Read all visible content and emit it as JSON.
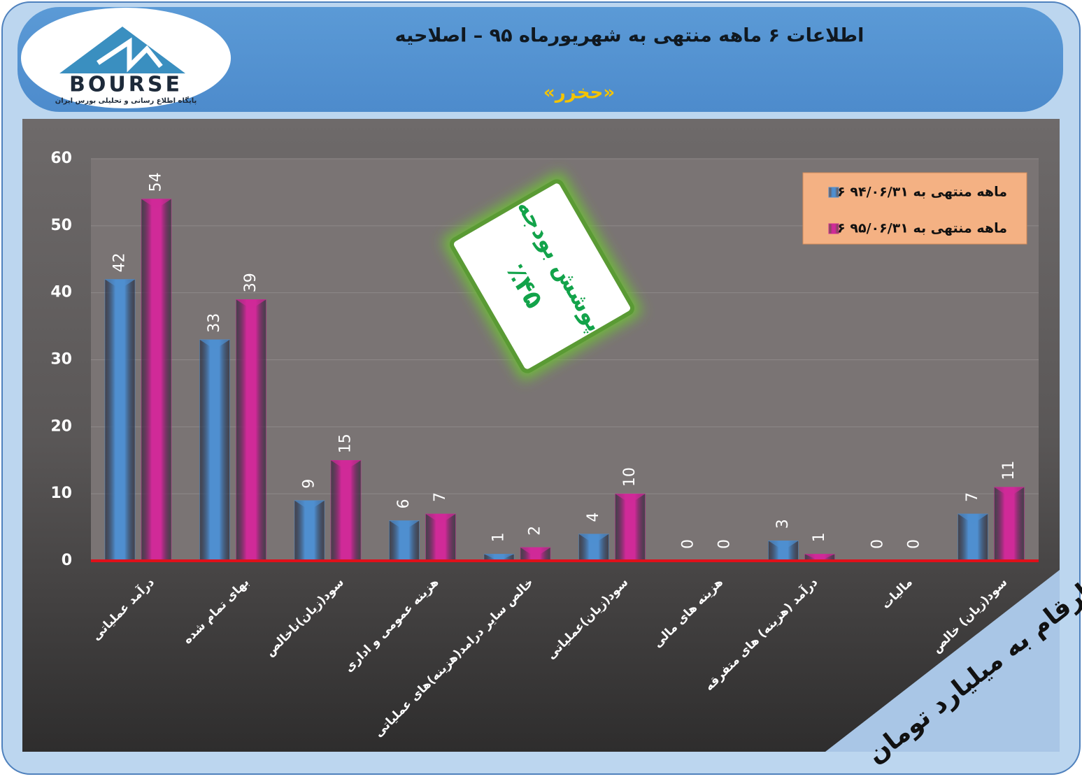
{
  "chart_data": {
    "type": "bar",
    "title": "اطلاعات ۶  ماهه منتهی به شهریورماه ۹۵ – اصلاحیه",
    "subtitle": "«حخزر»",
    "logo_text": "BOURSE",
    "logo_tagline": "پایگاه اطلاع رسانی و تحلیلی بورس ایران",
    "badge_lines": [
      "پوشش بودجه",
      "٪۴۵"
    ],
    "unit_note": "ارقام به میلیارد تومان",
    "categories": [
      "درآمد عملیاتی",
      "بهای تمام شده",
      "سود(زیان)ناخالص",
      "هزینه عمومی و اداری",
      "خالص سایر درامد(هزینه)های عملیاتی",
      "سود(زیان)عملیاتی",
      "هزینه های مالی",
      "درآمد (هزینه) های متفرقه",
      "مالیات",
      "سود(زیان) خالص"
    ],
    "series": [
      {
        "name": "۶ ماهه منتهی به ۹۴/۰۶/۳۱",
        "color": "#4f8fd0",
        "values": [
          42,
          33,
          9,
          6,
          1,
          4,
          0,
          3,
          0,
          7
        ]
      },
      {
        "name": "۶ ماهه منتهی به ۹۵/۰۶/۳۱",
        "color": "#d02a98",
        "values": [
          54,
          39,
          15,
          7,
          2,
          10,
          0,
          1,
          0,
          11
        ]
      }
    ],
    "ylim": [
      0,
      60
    ],
    "yticks": [
      0,
      10,
      20,
      30,
      40,
      50,
      60
    ],
    "grid": true,
    "legend": "top-right"
  }
}
